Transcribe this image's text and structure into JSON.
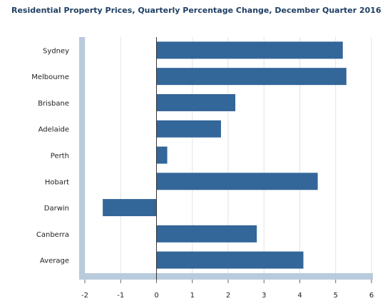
{
  "chart_data": {
    "type": "bar",
    "orientation": "horizontal",
    "title": "Residential Property Prices, Quarterly Percentage Change, December Quarter 2016",
    "categories": [
      "Sydney",
      "Melbourne",
      "Brisbane",
      "Adelaide",
      "Perth",
      "Hobart",
      "Darwin",
      "Canberra",
      "Average"
    ],
    "values": [
      5.2,
      5.3,
      2.2,
      1.8,
      0.3,
      4.5,
      -1.5,
      2.8,
      4.1
    ],
    "xlim": [
      -2,
      6
    ],
    "xticks": [
      "-2",
      "-1",
      "0",
      "1",
      "2",
      "3",
      "4",
      "5",
      "6"
    ],
    "xlabel": "",
    "ylabel": "",
    "grid": "vertical",
    "legend": "none",
    "colors": {
      "bar": "#336699",
      "grid": "#dfe3e8",
      "zero_line": "#333333",
      "frame": "#b8cbdc",
      "title": "#1f3f63"
    }
  }
}
